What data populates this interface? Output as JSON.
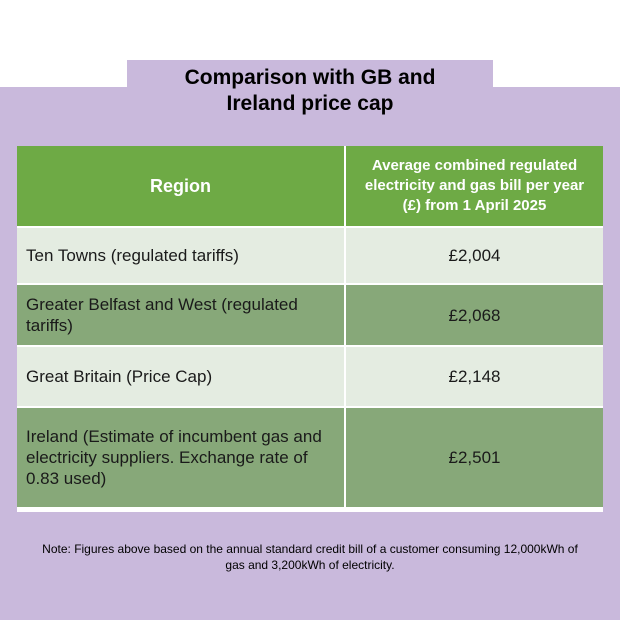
{
  "title": "Comparison with GB and Ireland price cap",
  "table": {
    "headers": [
      "Region",
      "Average combined regulated electricity and gas bill per year (£) from 1 April 2025"
    ],
    "rows": [
      {
        "region": "Ten Towns (regulated tariffs)",
        "bill": "£2,004"
      },
      {
        "region": "Greater Belfast and West (regulated tariffs)",
        "bill": "£2,068"
      },
      {
        "region": "Great Britain (Price Cap)",
        "bill": "£2,148"
      },
      {
        "region": "Ireland (Estimate of incumbent gas and electricity suppliers. Exchange rate of 0.83 used)",
        "bill": "£2,501"
      }
    ]
  },
  "note": "Note: Figures above based on the annual standard credit bill of a customer consuming 12,000kWh of gas and 3,200kWh of electricity.",
  "colors": {
    "background_panel": "#c9b9dc",
    "header_green": "#6eaa45",
    "row_light": "#e4ece1",
    "row_dark": "#87a879"
  }
}
